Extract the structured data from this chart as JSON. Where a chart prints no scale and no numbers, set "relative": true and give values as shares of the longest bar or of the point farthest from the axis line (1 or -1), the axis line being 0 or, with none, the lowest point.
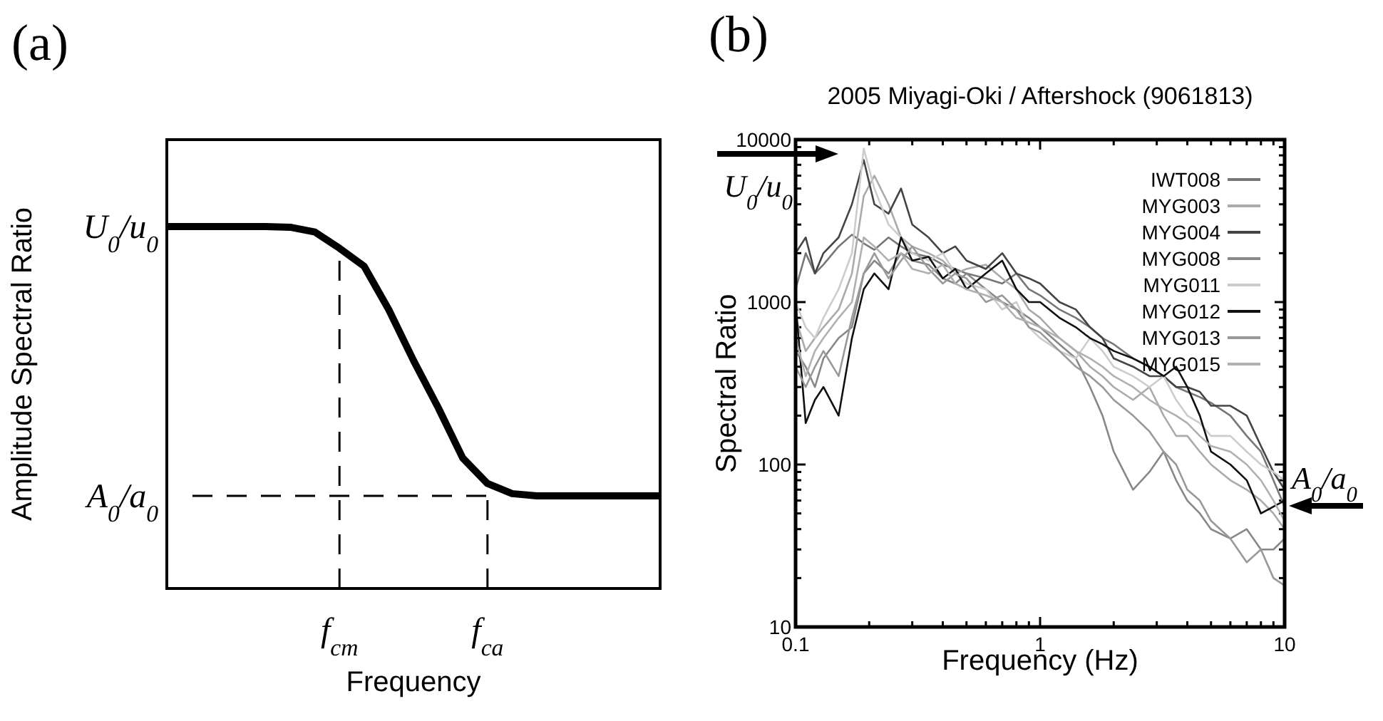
{
  "chart_data": [
    {
      "type": "line",
      "title": "(a)",
      "xlabel": "Frequency",
      "ylabel": "Amplitude Spectral Ratio",
      "relative": true,
      "categories": [
        null,
        null,
        null,
        null,
        null,
        null,
        null,
        "f$_{cm}$",
        null,
        null,
        null,
        null,
        null,
        "f$_{ca}$",
        null,
        null,
        null,
        null,
        null,
        null,
        null
      ],
      "series": [
        {
          "color": "#000000",
          "values": [
            1,
            1,
            1,
            1,
            1,
            0.998,
            0.985,
            0.94,
            0.89,
            0.77,
            0.63,
            0.5,
            0.36,
            0.29,
            0.262,
            0.256,
            0.256,
            0.256,
            0.256,
            0.256,
            0.256
          ]
        }
      ],
      "ref_lines": [
        {
          "axis": "x",
          "value": "f$_{cm}$",
          "line_style": "dashed"
        },
        {
          "axis": "x",
          "value": "f$_{ca}$",
          "line_style": "dashed"
        },
        {
          "axis": "y",
          "value": 0.256,
          "line_style": "dashed"
        }
      ],
      "annotations": [
        "U$_{0}$/u$_{0}$",
        "A$_{0}$/a$_{0}$"
      ]
    },
    {
      "type": "line",
      "title": "(b)",
      "subtitle": "2005 Miyagi-Oki / Aftershock (9061813)",
      "xlabel": "Frequency (Hz)",
      "ylabel": "Spectral Ratio",
      "log": "xy",
      "legend": "top right",
      "xlim": [
        0.1,
        10
      ],
      "ylim": [
        10,
        10000
      ],
      "xticks": [
        0.1,
        {
          "value": 0.2,
          "label": null
        },
        {
          "value": 0.3,
          "label": null
        },
        {
          "value": 0.4,
          "label": null
        },
        {
          "value": 0.5,
          "label": null
        },
        {
          "value": 0.6,
          "label": null
        },
        {
          "value": 0.7,
          "label": null
        },
        {
          "value": 0.8,
          "label": null
        },
        {
          "value": 0.9,
          "label": null
        },
        1,
        {
          "value": 2,
          "label": null
        },
        {
          "value": 3,
          "label": null
        },
        {
          "value": 4,
          "label": null
        },
        {
          "value": 5,
          "label": null
        },
        {
          "value": 6,
          "label": null
        },
        {
          "value": 7,
          "label": null
        },
        {
          "value": 8,
          "label": null
        },
        {
          "value": 9,
          "label": null
        },
        10
      ],
      "yticks": [
        10,
        {
          "value": 20,
          "label": null
        },
        {
          "value": 30,
          "label": null
        },
        {
          "value": 40,
          "label": null
        },
        {
          "value": 50,
          "label": null
        },
        {
          "value": 60,
          "label": null
        },
        {
          "value": 70,
          "label": null
        },
        {
          "value": 80,
          "label": null
        },
        {
          "value": 90,
          "label": null
        },
        100,
        {
          "value": 200,
          "label": null
        },
        {
          "value": 300,
          "label": null
        },
        {
          "value": 400,
          "label": null
        },
        {
          "value": 500,
          "label": null
        },
        {
          "value": 600,
          "label": null
        },
        {
          "value": 700,
          "label": null
        },
        {
          "value": 800,
          "label": null
        },
        {
          "value": 900,
          "label": null
        },
        1000,
        {
          "value": 2000,
          "label": null
        },
        {
          "value": 3000,
          "label": null
        },
        {
          "value": 4000,
          "label": null
        },
        {
          "value": 5000,
          "label": null
        },
        {
          "value": 6000,
          "label": null
        },
        {
          "value": 7000,
          "label": null
        },
        {
          "value": 8000,
          "label": null
        },
        {
          "value": 9000,
          "label": null
        },
        10000
      ],
      "x": [
        0.1,
        0.11,
        0.12,
        0.13,
        0.15,
        0.17,
        0.19,
        0.21,
        0.24,
        0.27,
        0.3,
        0.35,
        0.4,
        0.45,
        0.5,
        0.6,
        0.7,
        0.8,
        0.9,
        1,
        1.2,
        1.4,
        1.6,
        1.8,
        2,
        2.4,
        2.8,
        3.2,
        3.6,
        4,
        4.5,
        5,
        6,
        7,
        8,
        9,
        10
      ],
      "series": [
        {
          "name": "IWT008",
          "color": "#777777",
          "values": [
            1200,
            2000,
            1500,
            1700,
            2200,
            2600,
            2300,
            2100,
            2500,
            2200,
            2000,
            1900,
            1700,
            1600,
            1500,
            1400,
            1300,
            1500,
            1200,
            1100,
            900,
            800,
            700,
            600,
            550,
            450,
            400,
            350,
            300,
            280,
            260,
            240,
            200,
            150,
            120,
            80,
            55
          ]
        },
        {
          "name": "MYG003",
          "color": "#aaaaaa",
          "values": [
            800,
            500,
            600,
            700,
            900,
            1500,
            4500,
            6000,
            4000,
            2500,
            2200,
            2000,
            1800,
            1500,
            1600,
            1700,
            1400,
            1200,
            900,
            800,
            600,
            500,
            400,
            350,
            300,
            250,
            300,
            200,
            150,
            150,
            120,
            100,
            80,
            70,
            60,
            50,
            40
          ]
        },
        {
          "name": "MYG004",
          "color": "#444444",
          "values": [
            2000,
            2500,
            1500,
            2000,
            2500,
            4000,
            7500,
            4000,
            3500,
            5000,
            3000,
            2500,
            2000,
            2200,
            1800,
            1600,
            2000,
            1500,
            1400,
            1300,
            1000,
            900,
            700,
            600,
            450,
            400,
            350,
            350,
            300,
            300,
            280,
            230,
            230,
            200,
            130,
            90,
            70
          ]
        },
        {
          "name": "MYG008",
          "color": "#888888",
          "values": [
            500,
            400,
            300,
            450,
            600,
            700,
            1500,
            1800,
            1500,
            2000,
            1800,
            1700,
            1400,
            1300,
            1500,
            1200,
            1000,
            900,
            800,
            700,
            550,
            450,
            300,
            200,
            120,
            70,
            90,
            120,
            80,
            60,
            50,
            40,
            35,
            40,
            30,
            30,
            35
          ]
        },
        {
          "name": "MYG011",
          "color": "#cccccc",
          "values": [
            1000,
            700,
            600,
            800,
            1200,
            2000,
            8800,
            5000,
            3000,
            2500,
            2000,
            1800,
            2000,
            1500,
            1300,
            1200,
            900,
            1000,
            700,
            600,
            500,
            450,
            600,
            500,
            400,
            350,
            300,
            350,
            250,
            200,
            180,
            150,
            150,
            120,
            100,
            90,
            80
          ]
        },
        {
          "name": "MYG012",
          "color": "#111111",
          "values": [
            1000,
            180,
            250,
            300,
            200,
            600,
            1200,
            1500,
            1200,
            2500,
            1800,
            1900,
            1400,
            1600,
            1200,
            1500,
            1800,
            1200,
            1000,
            1000,
            800,
            700,
            600,
            550,
            500,
            450,
            400,
            350,
            400,
            300,
            200,
            120,
            100,
            80,
            50,
            55,
            60
          ]
        },
        {
          "name": "MYG013",
          "color": "#999999",
          "values": [
            400,
            300,
            400,
            500,
            350,
            800,
            1500,
            2000,
            1400,
            1800,
            2200,
            1600,
            1300,
            1500,
            1400,
            1000,
            1100,
            900,
            700,
            650,
            500,
            400,
            350,
            300,
            250,
            200,
            160,
            120,
            100,
            70,
            60,
            45,
            35,
            25,
            30,
            20,
            18
          ]
        },
        {
          "name": "MYG015",
          "color": "#b0b0b0",
          "values": [
            600,
            350,
            500,
            600,
            800,
            1000,
            2500,
            2200,
            1800,
            2000,
            1600,
            1500,
            1700,
            1300,
            1200,
            1100,
            1000,
            800,
            750,
            700,
            600,
            500,
            450,
            400,
            350,
            300,
            250,
            220,
            200,
            180,
            150,
            130,
            120,
            100,
            80,
            60,
            45
          ]
        }
      ],
      "annotations": [
        "U$_{0}$/u$_{0}$",
        "A$_{0}$/a$_{0}$"
      ]
    }
  ]
}
